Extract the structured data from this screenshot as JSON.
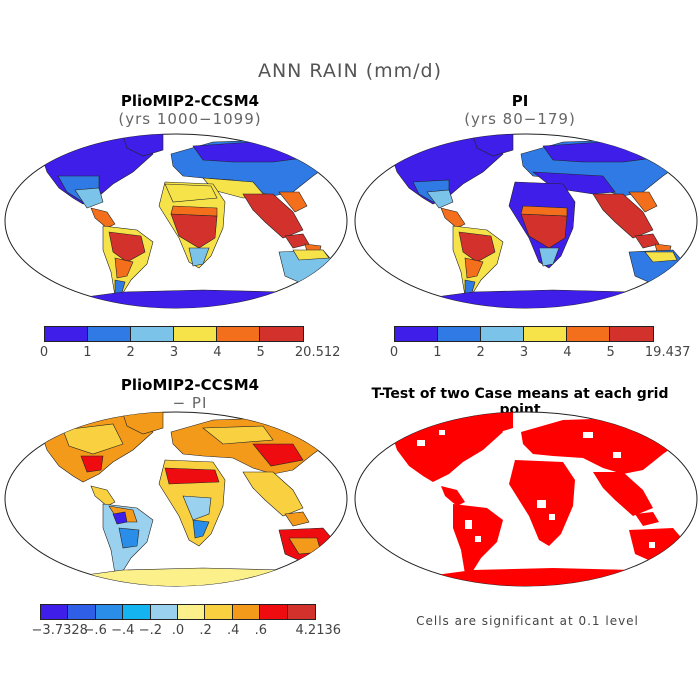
{
  "figure": {
    "title": "ANN RAIN (mm/d)",
    "note": "Cells are significant at 0.1 level"
  },
  "panels": {
    "p1": {
      "title": "PlioMIP2-CCSM4",
      "subtitle": "(yrs 1000−1099)"
    },
    "p2": {
      "title": "PI",
      "subtitle": "(yrs 80−179)"
    },
    "p3": {
      "title": "PlioMIP2-CCSM4",
      "subtitle": "− PI"
    },
    "p4": {
      "title": "T-Test of two Case means at each grid point"
    }
  },
  "colorbars": {
    "cb1": {
      "colors": [
        "#3f1eea",
        "#2f7ae4",
        "#7cc3ea",
        "#f6e34a",
        "#f46f1c",
        "#d2322b"
      ],
      "labels": [
        "0",
        "1",
        "2",
        "3",
        "4",
        "5",
        "20.512"
      ]
    },
    "cb2": {
      "colors": [
        "#3f1eea",
        "#2f7ae4",
        "#7cc3ea",
        "#f6e34a",
        "#f46f1c",
        "#d2322b"
      ],
      "labels": [
        "0",
        "1",
        "2",
        "3",
        "4",
        "5",
        "19.437"
      ]
    },
    "cb3": {
      "colors": [
        "#3f1eea",
        "#2f5fe6",
        "#2a8ee8",
        "#14b4f0",
        "#9ad1ee",
        "#fbf08a",
        "#f8d040",
        "#f49a1a",
        "#ef0c10",
        "#d2322b"
      ],
      "labels": [
        "−3.7328",
        "−.6",
        "−.4",
        "−.2",
        ".0",
        ".2",
        ".4",
        ".6",
        "4.2136"
      ],
      "label_at_boundaries": [
        0,
        2,
        3,
        4,
        5,
        6,
        7,
        8,
        10
      ]
    }
  },
  "maps": {
    "ocean": "#ffffff",
    "outline": "#222222",
    "significance_color": "#ff0000"
  }
}
